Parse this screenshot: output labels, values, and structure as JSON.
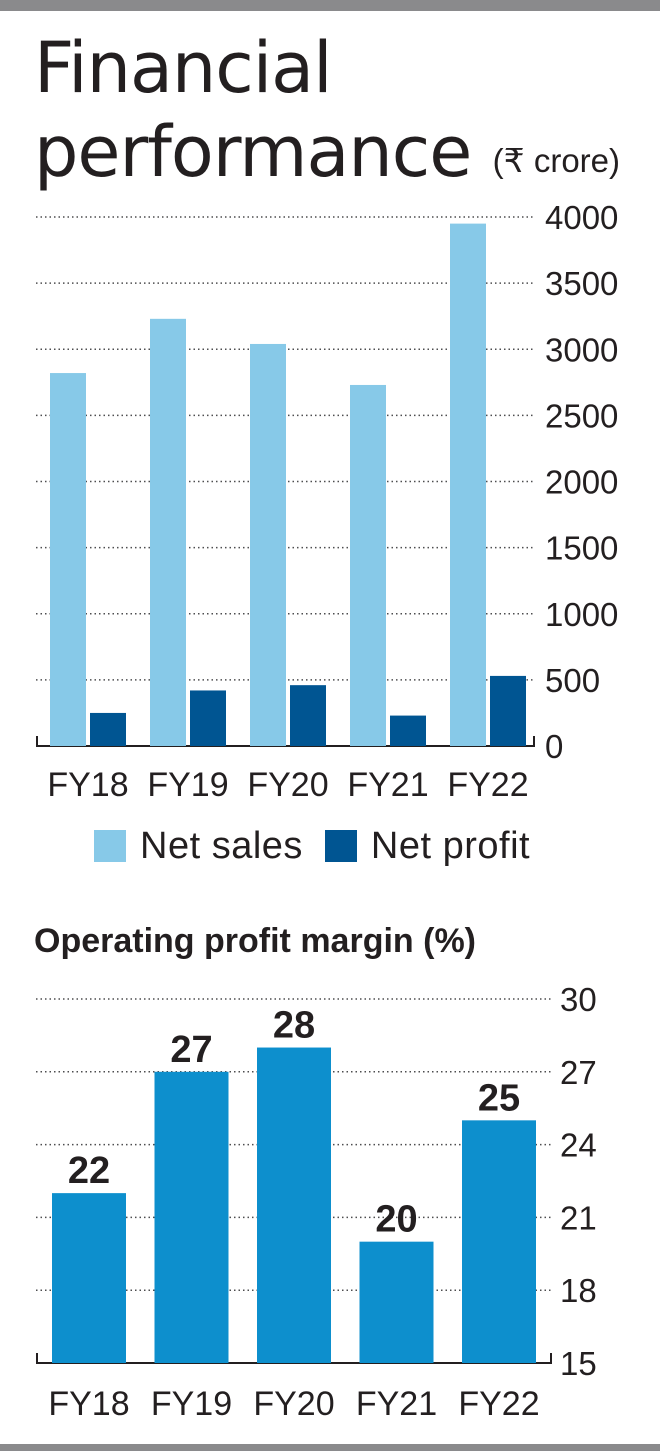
{
  "page": {
    "title_lines": [
      "Financial",
      "performance"
    ],
    "unit": "(₹ crore)"
  },
  "colors": {
    "net_sales": "#87c9e8",
    "net_profit": "#005592",
    "margin": "#0d8fcd",
    "rule": "#8a8a8c"
  },
  "chart_data": [
    {
      "type": "bar",
      "title": "Financial performance",
      "unit": "(₹ crore)",
      "categories": [
        "FY18",
        "FY19",
        "FY20",
        "FY21",
        "FY22"
      ],
      "series": [
        {
          "name": "Net sales",
          "values": [
            2820,
            3230,
            3040,
            2730,
            3950
          ]
        },
        {
          "name": "Net profit",
          "values": [
            250,
            420,
            460,
            230,
            530
          ]
        }
      ],
      "ylim": [
        0,
        4000
      ],
      "yticks": [
        0,
        500,
        1000,
        1500,
        2000,
        2500,
        3000,
        3500,
        4000
      ],
      "grid": true,
      "legend_position": "bottom"
    },
    {
      "type": "bar",
      "title": "Operating profit margin (%)",
      "categories": [
        "FY18",
        "FY19",
        "FY20",
        "FY21",
        "FY22"
      ],
      "values": [
        22,
        27,
        28,
        20,
        25
      ],
      "data_labels": [
        "22",
        "27",
        "28",
        "20",
        "25"
      ],
      "ylim": [
        15,
        30
      ],
      "yticks": [
        15,
        18,
        21,
        24,
        27,
        30
      ],
      "grid": true
    }
  ]
}
